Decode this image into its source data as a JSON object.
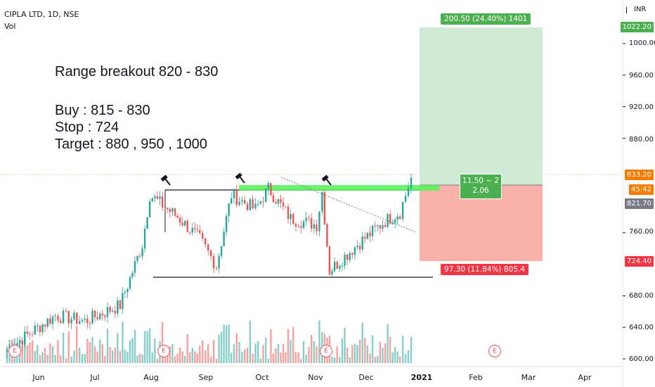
{
  "header": {
    "symbol_line": "CIPLA LTD, 1D, NSE",
    "volume_label": "Vol"
  },
  "notes": {
    "line1": "Range breakout 820 - 830",
    "line2": "Buy : 815 - 830",
    "line3": "Stop : 724",
    "line4": "Target : 880 , 950 , 1000"
  },
  "position_tool": {
    "target_label": "200.50 (24.40%) 1401",
    "stop_label": "97.30 (11.84%) 805.4",
    "ratio_line1": "11.50 ~ 2",
    "ratio_line2": "2.06",
    "entry": 821.7,
    "target": 1022.2,
    "stop": 724.4
  },
  "price_axis": {
    "currency": "INR",
    "ticks": [
      "1000.00",
      "960.00",
      "920.00",
      "880.00",
      "760.00",
      "680.00",
      "640.00",
      "600.00"
    ],
    "label_target": "1022.20",
    "label_last": "833.20",
    "label_countdown": "45:42",
    "label_entry": "821.70",
    "label_stop": "724.40"
  },
  "time_axis": {
    "months": [
      "Jun",
      "Jul",
      "Aug",
      "Sep",
      "Oct",
      "Nov",
      "Dec",
      "2021",
      "Feb",
      "Mar",
      "Apr"
    ]
  },
  "colors": {
    "up": "#26a69a",
    "down": "#ef5350",
    "target_zone": "#cfead5",
    "stop_zone": "#f9b2ab",
    "target_tag": "#4caf50",
    "stop_tag": "#f23645",
    "breakout_band": "#5cf15f"
  },
  "chart_data": {
    "type": "candlestick",
    "ylim": [
      595,
      1050
    ],
    "yticks": [
      600,
      640,
      680,
      760,
      880,
      920,
      960,
      1000
    ],
    "lines": {
      "range_top": 818,
      "range_bottom": 703,
      "last_price": 833.2
    },
    "ohlc_anchor_closes": [
      {
        "date": "2020-05-20",
        "close": 612
      },
      {
        "date": "2020-06-15",
        "close": 655
      },
      {
        "date": "2020-07-01",
        "close": 648
      },
      {
        "date": "2020-07-20",
        "close": 668
      },
      {
        "date": "2020-08-01",
        "close": 745
      },
      {
        "date": "2020-08-05",
        "close": 808
      },
      {
        "date": "2020-08-20",
        "close": 780
      },
      {
        "date": "2020-09-01",
        "close": 752
      },
      {
        "date": "2020-09-10",
        "close": 718
      },
      {
        "date": "2020-09-18",
        "close": 808
      },
      {
        "date": "2020-10-01",
        "close": 790
      },
      {
        "date": "2020-10-08",
        "close": 816
      },
      {
        "date": "2020-10-20",
        "close": 778
      },
      {
        "date": "2020-11-03",
        "close": 770
      },
      {
        "date": "2020-11-06",
        "close": 812
      },
      {
        "date": "2020-11-10",
        "close": 712
      },
      {
        "date": "2020-11-25",
        "close": 745
      },
      {
        "date": "2020-12-10",
        "close": 775
      },
      {
        "date": "2020-12-18",
        "close": 786
      },
      {
        "date": "2020-12-24",
        "close": 830
      }
    ]
  }
}
